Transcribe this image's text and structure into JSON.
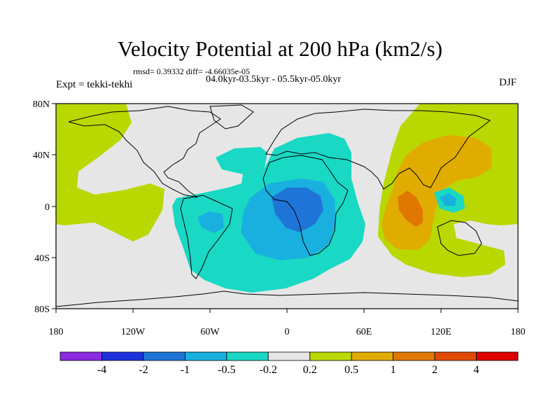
{
  "title": "Velocity Potential at 200 hPa (km2/s)",
  "stats": "rmsd= 0.39332 diff= -4.66035e-05",
  "period": "04.0kyr-03.5kyr - 05.5kyr-05.0kyr",
  "expt": "Expt = tekki-tekhi",
  "season": "DJF",
  "axes": {
    "x_ticks": [
      "180",
      "120W",
      "60W",
      "0",
      "60E",
      "120E",
      "180"
    ],
    "y_ticks": [
      "80N",
      "40N",
      "0",
      "40S",
      "80S"
    ]
  },
  "colorbar": {
    "labels": [
      "-4",
      "-2",
      "-1",
      "-0.5",
      "-0.2",
      "0.2",
      "0.5",
      "1",
      "2",
      "4"
    ],
    "colors": [
      "#8a2be2",
      "#1e30e0",
      "#1f74d8",
      "#19b0e0",
      "#19d8c4",
      "#e6e6e6",
      "#b8d800",
      "#e0ac00",
      "#e07800",
      "#e04a00",
      "#e00000"
    ]
  },
  "colors": {
    "background": "#e6e6e6",
    "land_outline": "#000000"
  }
}
